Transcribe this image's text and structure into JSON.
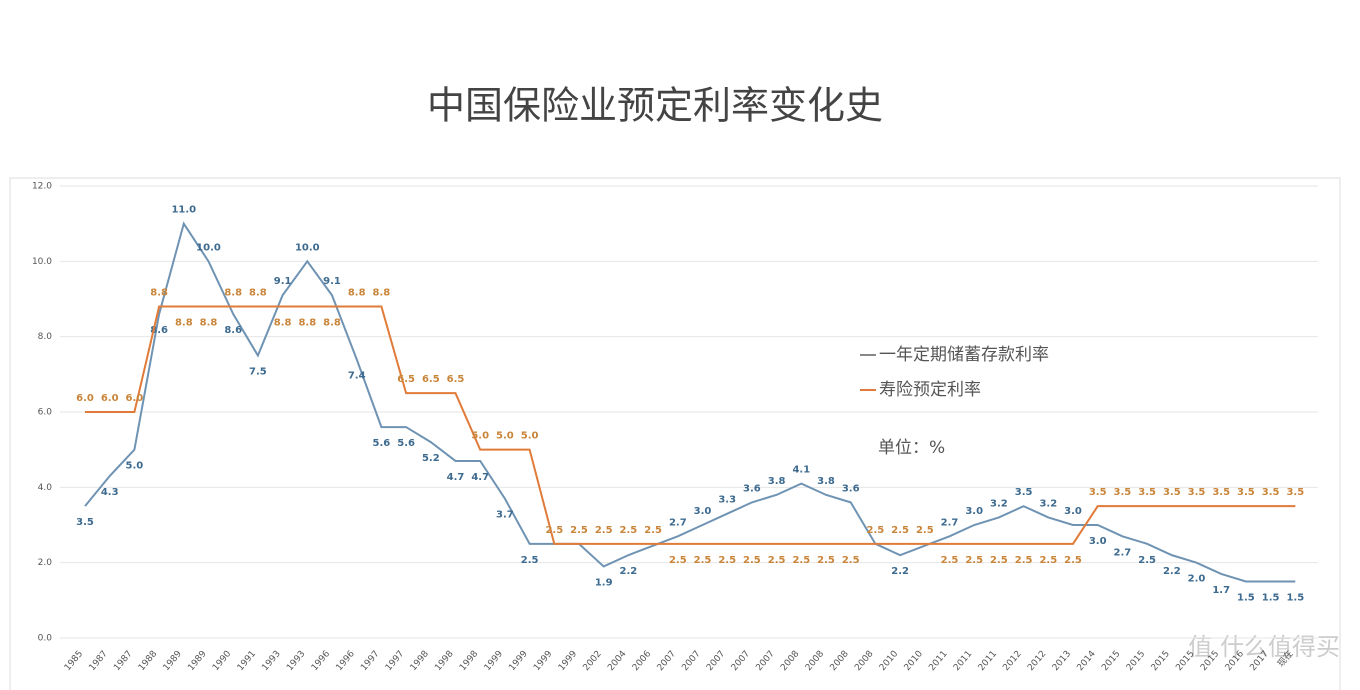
{
  "chart_data": {
    "type": "line",
    "title": "中国保险业预定利率变化史",
    "annotation": "单位：%",
    "watermark": "值 什么值得买",
    "categories": [
      "1985",
      "1987",
      "1987",
      "1988",
      "1989",
      "1989",
      "1990",
      "1991",
      "1993",
      "1993",
      "1996",
      "1996",
      "1997",
      "1997",
      "1998",
      "1998",
      "1998",
      "1999",
      "1999",
      "1999",
      "1999",
      "2002",
      "2004",
      "2006",
      "2007",
      "2007",
      "2007",
      "2007",
      "2007",
      "2008",
      "2008",
      "2008",
      "2008",
      "2010",
      "2010",
      "2011",
      "2011",
      "2011",
      "2012",
      "2012",
      "2013",
      "2014",
      "2015",
      "2015",
      "2015",
      "2015",
      "2015",
      "2016",
      "2017",
      "现在"
    ],
    "series": [
      {
        "name": "一年定期储蓄存款利率",
        "color": "#6f93b3",
        "values": [
          3.5,
          4.3,
          5.0,
          8.6,
          11.0,
          10.0,
          8.6,
          7.5,
          9.1,
          10.0,
          9.1,
          7.4,
          5.6,
          5.6,
          5.2,
          4.7,
          4.7,
          3.7,
          2.5,
          2.5,
          2.5,
          1.9,
          2.2,
          2.45,
          2.7,
          3.0,
          3.3,
          3.6,
          3.8,
          4.1,
          3.8,
          3.6,
          2.5,
          2.2,
          2.45,
          2.7,
          3.0,
          3.2,
          3.5,
          3.2,
          3.0,
          3.0,
          2.7,
          2.5,
          2.2,
          2.0,
          1.7,
          1.5,
          1.5,
          1.5
        ],
        "value_labels": [
          "3.5",
          "4.3",
          "5.0",
          "8.6",
          "11.0",
          "10.0",
          "8.6",
          "7.5",
          "9.1",
          "10.0",
          "9.1",
          "7.4",
          "5.6",
          "5.6",
          "5.2",
          "4.7",
          "4.7",
          "3.7",
          "2.5",
          null,
          null,
          "1.9",
          "2.2",
          null,
          "2.7",
          "3.0",
          "3.3",
          "3.6",
          "3.8",
          "4.1",
          "3.8",
          "3.6",
          null,
          "2.2",
          null,
          "2.7",
          "3.0",
          "3.2",
          "3.5",
          "3.2",
          "3.0",
          "3.0",
          "2.7",
          "2.5",
          "2.2",
          "2.0",
          "1.7",
          "1.5",
          "1.5",
          "1.5"
        ]
      },
      {
        "name": "寿险预定利率",
        "color": "#e07b39",
        "values": [
          6.0,
          6.0,
          6.0,
          8.8,
          8.8,
          8.8,
          8.8,
          8.8,
          8.8,
          8.8,
          8.8,
          8.8,
          8.8,
          6.5,
          6.5,
          6.5,
          5.0,
          5.0,
          5.0,
          2.5,
          2.5,
          2.5,
          2.5,
          2.5,
          2.5,
          2.5,
          2.5,
          2.5,
          2.5,
          2.5,
          2.5,
          2.5,
          2.5,
          2.5,
          2.5,
          2.5,
          2.5,
          2.5,
          2.5,
          2.5,
          2.5,
          3.5,
          3.5,
          3.5,
          3.5,
          3.5,
          3.5,
          3.5,
          3.5,
          3.5
        ],
        "value_labels": [
          "6.0",
          "6.0",
          "6.0",
          "8.8",
          "8.8",
          "8.8",
          "8.8",
          "8.8",
          "8.8",
          "8.8",
          "8.8",
          "8.8",
          "8.8",
          "6.5",
          "6.5",
          "6.5",
          "5.0",
          "5.0",
          "5.0",
          "2.5",
          "2.5",
          "2.5",
          "2.5",
          "2.5",
          "2.5",
          "2.5",
          "2.5",
          "2.5",
          "2.5",
          "2.5",
          "2.5",
          "2.5",
          "2.5",
          "2.5",
          "2.5",
          "2.5",
          "2.5",
          "2.5",
          "2.5",
          "2.5",
          "2.5",
          "3.5",
          "3.5",
          "3.5",
          "3.5",
          "3.5",
          "3.5",
          "3.5",
          "3.5",
          "3.5"
        ]
      }
    ],
    "ylim": [
      0,
      12
    ],
    "yticks": [
      {
        "value": 0,
        "label": "0.0"
      },
      {
        "value": 2,
        "label": "2.0"
      },
      {
        "value": 4,
        "label": "4.0"
      },
      {
        "value": 6,
        "label": "6.0"
      },
      {
        "value": 8,
        "label": "8.0"
      },
      {
        "value": 10,
        "label": "10.0"
      },
      {
        "value": 12,
        "label": "12.0"
      }
    ],
    "grid": true
  }
}
